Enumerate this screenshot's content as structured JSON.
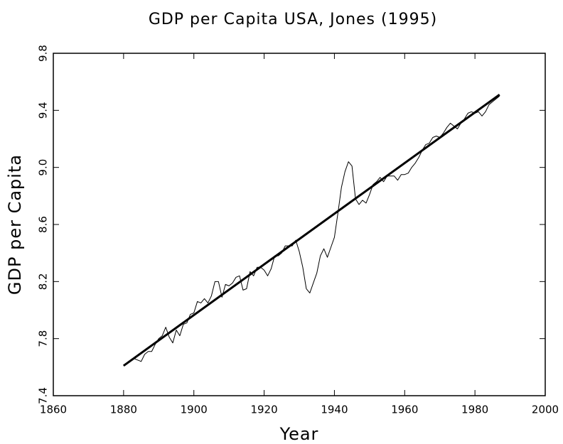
{
  "chart_data": {
    "type": "line",
    "title": "GDP per Capita USA, Jones (1995)",
    "x_label": "Year",
    "y_label": "GDP per Capita",
    "xlim": [
      1860,
      2000
    ],
    "xticks": [
      1860,
      1880,
      1900,
      1920,
      1940,
      1960,
      1980,
      2000
    ],
    "ylim": [
      7.4,
      9.8
    ],
    "yticks": [
      7.4,
      7.8,
      8.2,
      8.6,
      {
        "value": 9,
        "label": "9.0"
      },
      9.4,
      9.8
    ],
    "series": [
      {
        "color": "#000000",
        "width": 1,
        "x": [
          1880,
          1881,
          1882,
          1883,
          1884,
          1885,
          1886,
          1887,
          1888,
          1889,
          1890,
          1891,
          1892,
          1893,
          1894,
          1895,
          1896,
          1897,
          1898,
          1899,
          1900,
          1901,
          1902,
          1903,
          1904,
          1905,
          1906,
          1907,
          1908,
          1909,
          1910,
          1911,
          1912,
          1913,
          1914,
          1915,
          1916,
          1917,
          1918,
          1919,
          1920,
          1921,
          1922,
          1923,
          1924,
          1925,
          1926,
          1927,
          1928,
          1929,
          1930,
          1931,
          1932,
          1933,
          1934,
          1935,
          1936,
          1937,
          1938,
          1939,
          1940,
          1941,
          1942,
          1943,
          1944,
          1945,
          1946,
          1947,
          1948,
          1949,
          1950,
          1951,
          1952,
          1953,
          1954,
          1955,
          1956,
          1957,
          1958,
          1959,
          1960,
          1961,
          1962,
          1963,
          1964,
          1965,
          1966,
          1967,
          1968,
          1969,
          1970,
          1971,
          1972,
          1973,
          1974,
          1975,
          1976,
          1977,
          1978,
          1979,
          1980,
          1981,
          1982,
          1983,
          1984,
          1985,
          1986,
          1987
        ],
        "values": [
          7.61,
          7.63,
          7.65,
          7.66,
          7.65,
          7.64,
          7.69,
          7.71,
          7.71,
          7.76,
          7.8,
          7.82,
          7.88,
          7.81,
          7.77,
          7.86,
          7.82,
          7.9,
          7.91,
          7.97,
          7.98,
          8.06,
          8.05,
          8.08,
          8.05,
          8.1,
          8.2,
          8.2,
          8.09,
          8.18,
          8.17,
          8.19,
          8.23,
          8.24,
          8.14,
          8.15,
          8.27,
          8.24,
          8.3,
          8.3,
          8.28,
          8.24,
          8.29,
          8.38,
          8.38,
          8.4,
          8.45,
          8.45,
          8.45,
          8.49,
          8.41,
          8.3,
          8.15,
          8.12,
          8.19,
          8.26,
          8.38,
          8.43,
          8.37,
          8.44,
          8.51,
          8.68,
          8.86,
          8.97,
          9.04,
          9.01,
          8.78,
          8.74,
          8.77,
          8.75,
          8.81,
          8.88,
          8.9,
          8.93,
          8.9,
          8.94,
          8.94,
          8.94,
          8.91,
          8.95,
          8.95,
          8.96,
          9.0,
          9.03,
          9.07,
          9.12,
          9.16,
          9.17,
          9.21,
          9.22,
          9.21,
          9.24,
          9.28,
          9.31,
          9.29,
          9.27,
          9.31,
          9.34,
          9.38,
          9.39,
          9.38,
          9.39,
          9.36,
          9.39,
          9.44,
          9.46,
          9.48,
          9.5
        ]
      },
      {
        "color": "#000000",
        "width": 3,
        "x": [
          1880,
          1987
        ],
        "values": [
          7.61,
          9.51
        ]
      }
    ]
  }
}
